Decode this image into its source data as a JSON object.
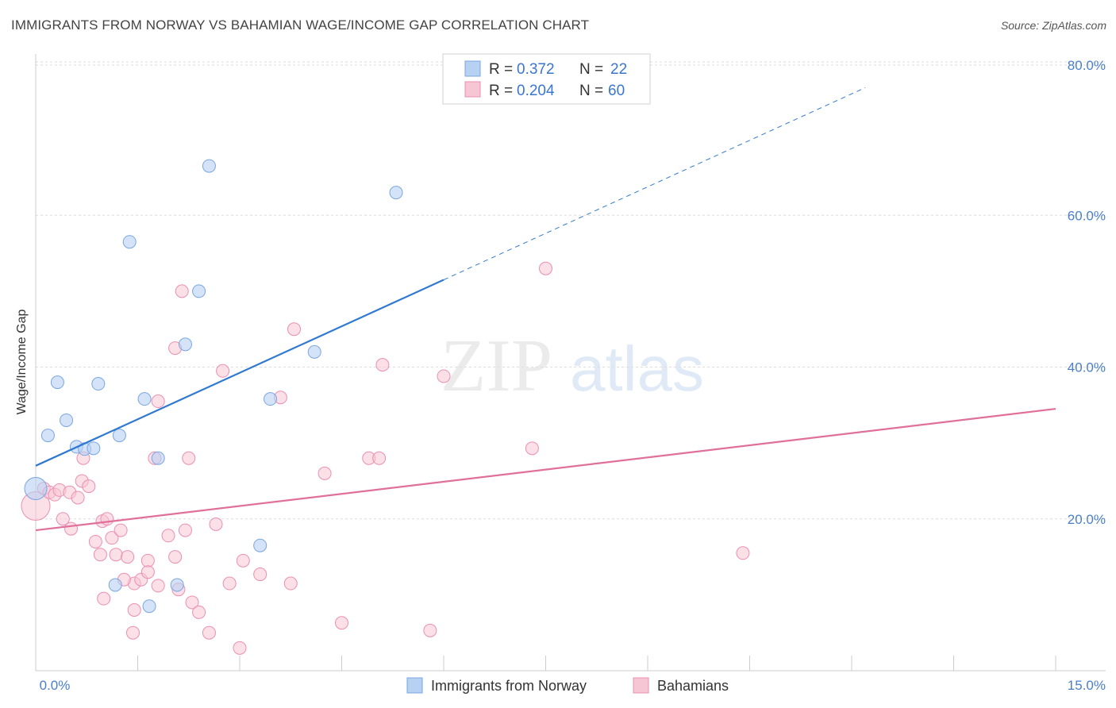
{
  "title": "IMMIGRANTS FROM NORWAY VS BAHAMIAN WAGE/INCOME GAP CORRELATION CHART",
  "source": "Source: ZipAtlas.com",
  "watermark": {
    "part1": "ZIP",
    "part2": "atlas"
  },
  "colors": {
    "blue_fill": "#b7d1f3",
    "blue_stroke": "#7aa6e0",
    "blue_line": "#3079d1",
    "pink_fill": "#f7c6d5",
    "pink_stroke": "#eb8fb0",
    "pink_line": "#e0709a",
    "axis_text": "#4a7fc8",
    "grid": "#dddddd"
  },
  "chart_data": {
    "type": "scatter",
    "title": "IMMIGRANTS FROM NORWAY VS BAHAMIAN WAGE/INCOME GAP CORRELATION CHART",
    "xlabel": "",
    "ylabel": "Wage/Income Gap",
    "xlim": [
      0,
      15
    ],
    "ylim": [
      0,
      80
    ],
    "x_tick_labels": [
      "0.0%",
      "15.0%"
    ],
    "y_tick_labels": [
      "80.0%",
      "60.0%",
      "40.0%",
      "20.0%"
    ],
    "y_ticks": [
      80,
      60,
      40,
      20
    ],
    "legend": [
      {
        "series": "Immigrants from Norway",
        "r_label": "R =",
        "r_value": "0.372",
        "n_label": "N =",
        "n_value": "22"
      },
      {
        "series": "Bahamians",
        "r_label": "R =",
        "r_value": "0.204",
        "n_label": "N =",
        "n_value": "60"
      }
    ],
    "series": [
      {
        "name": "Immigrants from Norway",
        "color": "#b7d1f3",
        "trend": {
          "x0": 0.0,
          "y0": 27.0,
          "x1": 6.0,
          "y1": 51.5,
          "dashed_to_x": 12.2
        },
        "points": [
          [
            0.0,
            24.0
          ],
          [
            0.18,
            31.0
          ],
          [
            0.32,
            38.0
          ],
          [
            0.45,
            33.0
          ],
          [
            0.6,
            29.5
          ],
          [
            0.72,
            29.2
          ],
          [
            0.85,
            29.3
          ],
          [
            0.92,
            37.8
          ],
          [
            1.23,
            31.0
          ],
          [
            1.38,
            56.5
          ],
          [
            1.6,
            35.8
          ],
          [
            1.8,
            28.0
          ],
          [
            2.2,
            43.0
          ],
          [
            2.4,
            50.0
          ],
          [
            2.55,
            66.5
          ],
          [
            3.45,
            35.8
          ],
          [
            4.1,
            42.0
          ],
          [
            5.3,
            63.0
          ],
          [
            3.3,
            16.5
          ],
          [
            1.17,
            11.3
          ],
          [
            1.67,
            8.5
          ],
          [
            2.08,
            11.3
          ]
        ]
      },
      {
        "name": "Bahamians",
        "color": "#f7c6d5",
        "trend": {
          "x0": 0.0,
          "y0": 18.5,
          "x1": 15.0,
          "y1": 34.5
        },
        "points": [
          [
            0.0,
            21.7
          ],
          [
            0.12,
            24.0
          ],
          [
            0.2,
            23.5
          ],
          [
            0.28,
            23.2
          ],
          [
            0.35,
            23.8
          ],
          [
            0.5,
            23.5
          ],
          [
            0.52,
            18.7
          ],
          [
            0.62,
            22.8
          ],
          [
            0.68,
            25.0
          ],
          [
            0.78,
            24.3
          ],
          [
            0.88,
            17.0
          ],
          [
            0.98,
            19.7
          ],
          [
            1.05,
            20.0
          ],
          [
            1.12,
            17.5
          ],
          [
            1.18,
            15.3
          ],
          [
            1.25,
            18.5
          ],
          [
            1.35,
            15.0
          ],
          [
            1.45,
            11.5
          ],
          [
            1.55,
            12.0
          ],
          [
            1.65,
            14.5
          ],
          [
            1.8,
            11.2
          ],
          [
            1.95,
            17.8
          ],
          [
            2.05,
            15.0
          ],
          [
            2.1,
            10.7
          ],
          [
            2.2,
            18.5
          ],
          [
            2.3,
            9.0
          ],
          [
            2.4,
            7.7
          ],
          [
            2.55,
            5.0
          ],
          [
            2.65,
            19.3
          ],
          [
            2.75,
            39.5
          ],
          [
            2.85,
            11.5
          ],
          [
            3.0,
            3.0
          ],
          [
            3.05,
            14.5
          ],
          [
            3.3,
            12.7
          ],
          [
            3.6,
            36.0
          ],
          [
            3.75,
            11.5
          ],
          [
            3.8,
            45.0
          ],
          [
            4.25,
            26.0
          ],
          [
            4.5,
            6.3
          ],
          [
            4.9,
            28.0
          ],
          [
            5.05,
            28.0
          ],
          [
            5.1,
            40.3
          ],
          [
            5.8,
            5.3
          ],
          [
            6.0,
            38.8
          ],
          [
            7.3,
            29.3
          ],
          [
            7.5,
            53.0
          ],
          [
            10.4,
            15.5
          ],
          [
            0.95,
            15.3
          ],
          [
            1.45,
            8.0
          ],
          [
            1.43,
            5.0
          ],
          [
            1.65,
            13.0
          ],
          [
            1.75,
            28.0
          ],
          [
            1.8,
            35.5
          ],
          [
            2.15,
            50.0
          ],
          [
            2.05,
            42.5
          ],
          [
            2.25,
            28.0
          ],
          [
            0.4,
            20.0
          ],
          [
            0.7,
            28.0
          ],
          [
            1.0,
            9.5
          ],
          [
            1.3,
            12.0
          ]
        ]
      }
    ]
  },
  "bottom_legend": [
    {
      "label": "Immigrants from Norway"
    },
    {
      "label": "Bahamians"
    }
  ]
}
